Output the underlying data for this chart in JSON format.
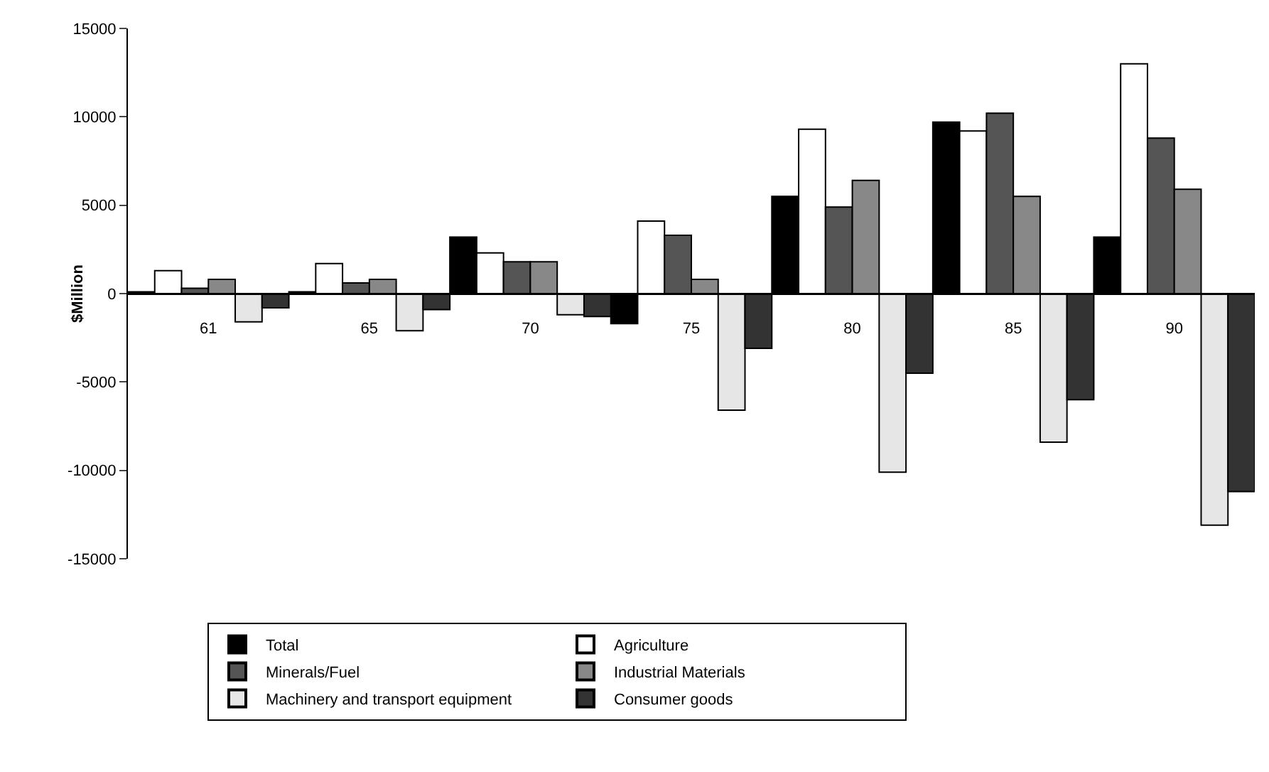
{
  "chart_data": {
    "type": "bar",
    "ylabel": "$Million",
    "categories": [
      "61",
      "65",
      "70",
      "75",
      "80",
      "85",
      "90"
    ],
    "series": [
      {
        "name": "Total",
        "color": "#000000",
        "values": [
          100,
          100,
          3200,
          -1700,
          5500,
          9700,
          3200
        ]
      },
      {
        "name": "Agriculture",
        "color": "#ffffff",
        "values": [
          1300,
          1700,
          2300,
          4100,
          9300,
          9200,
          13000
        ]
      },
      {
        "name": "Minerals/Fuel",
        "color": "#555555",
        "values": [
          300,
          600,
          1800,
          3300,
          4900,
          10200,
          8800
        ]
      },
      {
        "name": "Industrial Materials",
        "color": "#888888",
        "values": [
          800,
          800,
          1800,
          800,
          6400,
          5500,
          5900
        ]
      },
      {
        "name": "Machinery and transport equipment",
        "color": "#e6e6e6",
        "values": [
          -1600,
          -2100,
          -1200,
          -6600,
          -10100,
          -8400,
          -13100
        ]
      },
      {
        "name": "Consumer goods",
        "color": "#333333",
        "values": [
          -800,
          -900,
          -1300,
          -3100,
          -4500,
          -6000,
          -11200
        ]
      }
    ],
    "ylim": [
      -15000,
      15000
    ],
    "yticks": [
      -15000,
      -10000,
      -5000,
      0,
      5000,
      10000,
      15000
    ],
    "grid": false,
    "legend": "bottom"
  }
}
